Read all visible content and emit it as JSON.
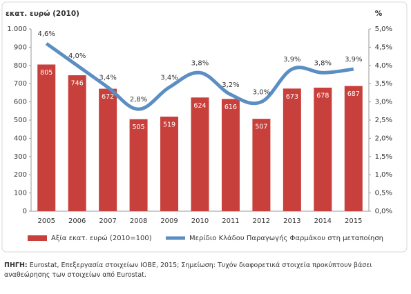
{
  "chart_data": {
    "type": "bar-line",
    "ylabel": "εκατ. ευρώ (2010)",
    "y2label": "%",
    "categories": [
      "2005",
      "2006",
      "2007",
      "2008",
      "2009",
      "2010",
      "2011",
      "2012",
      "2013",
      "2014",
      "2015"
    ],
    "series": [
      {
        "name": "Αξία εκατ. ευρώ (2010=100)",
        "type": "bar",
        "color": "#c8403c",
        "values": [
          805,
          746,
          672,
          505,
          519,
          624,
          616,
          507,
          673,
          678,
          687
        ]
      },
      {
        "name": "Μερίδιο Κλάδου Παραγωγής Φαρμάκου στη μεταποίηση",
        "type": "line",
        "color": "#5b8ec2",
        "axis": "y2",
        "values": [
          4.6,
          4.0,
          3.4,
          2.8,
          3.4,
          3.8,
          3.2,
          3.0,
          3.9,
          3.8,
          3.9
        ],
        "value_labels": [
          "4,6%",
          "4,0%",
          "3,4%",
          "2,8%",
          "3,4%",
          "3,8%",
          "3,2%",
          "3,0%",
          "3,9%",
          "3,8%",
          "3,9%"
        ]
      }
    ],
    "ylim": [
      0,
      1000
    ],
    "yticks": [
      0,
      100,
      200,
      300,
      400,
      500,
      600,
      700,
      800,
      900,
      {
        "value": 1000,
        "label": "1.000"
      }
    ],
    "y2lim": [
      0,
      5
    ],
    "y2ticks": [
      {
        "value": 0,
        "label": "0,0%"
      },
      {
        "value": 0.5,
        "label": "0,5%"
      },
      {
        "value": 1,
        "label": "1,0%"
      },
      {
        "value": 1.5,
        "label": "1,5%"
      },
      {
        "value": 2,
        "label": "2,0%"
      },
      {
        "value": 2.5,
        "label": "2,5%"
      },
      {
        "value": 3,
        "label": "3,0%"
      },
      {
        "value": 3.5,
        "label": "3,5%"
      },
      {
        "value": 4,
        "label": "4,0%"
      },
      {
        "value": 4.5,
        "label": "4,5%"
      },
      {
        "value": 5,
        "label": "5,0%"
      }
    ],
    "legend": "bottom",
    "source_label": "ΠΗΓΗ:",
    "source_text": "Eurostat, Επεξεργασία στοιχείων ΙΟΒΕ, 2015; Σημείωση: Τυχόν διαφορετικά στοιχεία προκύπτουν βάσει αναθεώρησης των στοιχείων από Eurostat."
  }
}
